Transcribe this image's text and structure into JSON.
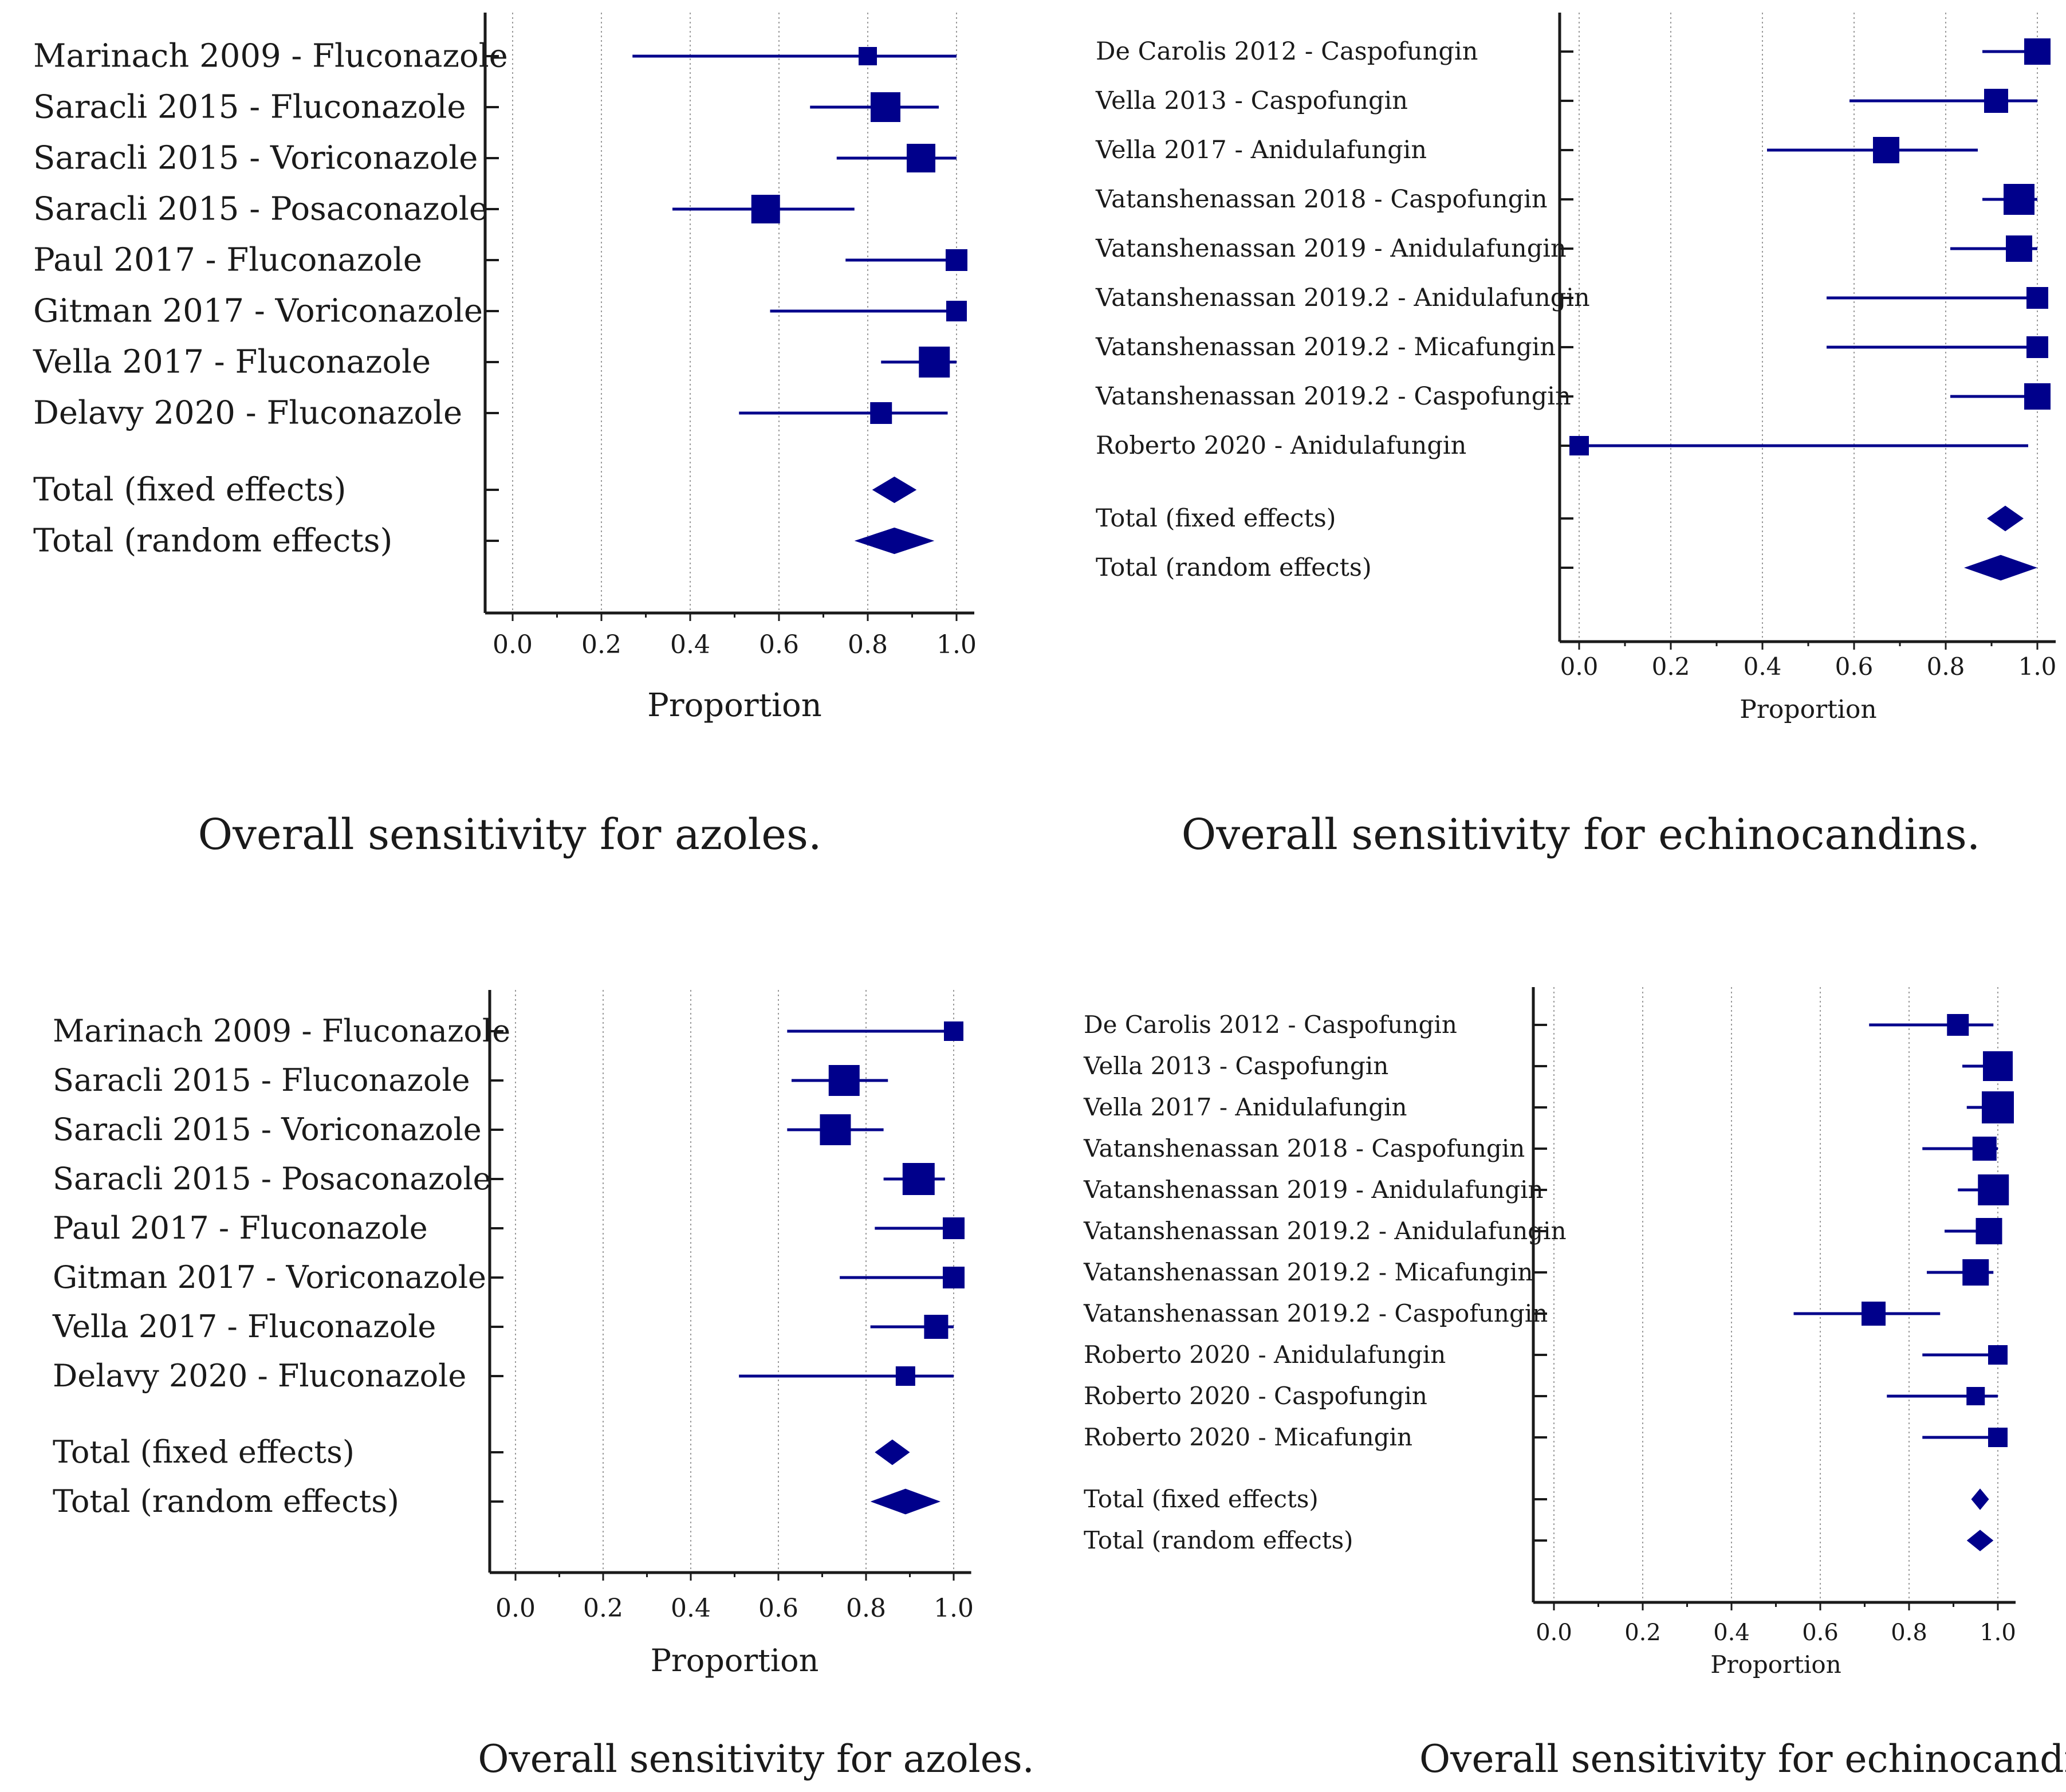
{
  "colors": {
    "marker": "#00008b",
    "axis": "#1a1a1a",
    "grid": "#9a9a9a",
    "text": "#1a1a1a"
  },
  "chart_data": [
    {
      "type": "forest",
      "title": "Overall sensitivity for azoles.",
      "xlabel": "Proportion",
      "xlim": [
        0,
        1
      ],
      "ticks": [
        "0.0",
        "0.2",
        "0.4",
        "0.6",
        "0.8",
        "1.0"
      ],
      "studies": [
        {
          "label": "Marinach 2009 - Fluconazole",
          "est": 0.8,
          "lo": 0.27,
          "hi": 1.0,
          "weight": 0.35
        },
        {
          "label": "Saracli 2015 - Fluconazole",
          "est": 0.84,
          "lo": 0.67,
          "hi": 0.96,
          "weight": 0.85
        },
        {
          "label": "Saracli 2015 - Voriconazole",
          "est": 0.92,
          "lo": 0.73,
          "hi": 1.0,
          "weight": 0.8
        },
        {
          "label": "Saracli 2015 - Posaconazole",
          "est": 0.57,
          "lo": 0.36,
          "hi": 0.77,
          "weight": 0.8
        },
        {
          "label": "Paul 2017 - Fluconazole",
          "est": 1.0,
          "lo": 0.75,
          "hi": 1.0,
          "weight": 0.5
        },
        {
          "label": "Gitman 2017 - Voriconazole",
          "est": 1.0,
          "lo": 0.58,
          "hi": 1.0,
          "weight": 0.45
        },
        {
          "label": "Vella 2017 - Fluconazole",
          "est": 0.95,
          "lo": 0.83,
          "hi": 1.0,
          "weight": 0.9
        },
        {
          "label": "Delavy 2020 - Fluconazole",
          "est": 0.83,
          "lo": 0.51,
          "hi": 0.98,
          "weight": 0.5
        }
      ],
      "totals": [
        {
          "label": "Total (fixed effects)",
          "est": 0.86,
          "lo": 0.81,
          "hi": 0.91
        },
        {
          "label": "Total (random effects)",
          "est": 0.86,
          "lo": 0.77,
          "hi": 0.95
        }
      ]
    },
    {
      "type": "forest",
      "title": "Overall sensitivity for echinocandins.",
      "xlabel": "Proportion",
      "xlim": [
        0,
        1
      ],
      "ticks": [
        "0.0",
        "0.2",
        "0.4",
        "0.6",
        "0.8",
        "1.0"
      ],
      "studies": [
        {
          "label": "De Carolis 2012 - Caspofungin",
          "est": 1.0,
          "lo": 0.88,
          "hi": 1.0,
          "weight": 0.7
        },
        {
          "label": "Vella 2013 - Caspofungin",
          "est": 0.91,
          "lo": 0.59,
          "hi": 1.0,
          "weight": 0.6
        },
        {
          "label": "Vella 2017 - Anidulafungin",
          "est": 0.67,
          "lo": 0.41,
          "hi": 0.87,
          "weight": 0.7
        },
        {
          "label": "Vatanshenassan 2018 - Caspofungin",
          "est": 0.96,
          "lo": 0.88,
          "hi": 1.0,
          "weight": 0.9
        },
        {
          "label": "Vatanshenassan 2019 - Anidulafungin",
          "est": 0.96,
          "lo": 0.81,
          "hi": 1.0,
          "weight": 0.7
        },
        {
          "label": "Vatanshenassan 2019.2 - Anidulafungin",
          "est": 1.0,
          "lo": 0.54,
          "hi": 1.0,
          "weight": 0.5
        },
        {
          "label": "Vatanshenassan 2019.2 - Micafungin",
          "est": 1.0,
          "lo": 0.54,
          "hi": 1.0,
          "weight": 0.5
        },
        {
          "label": "Vatanshenassan 2019.2 - Caspofungin",
          "est": 1.0,
          "lo": 0.81,
          "hi": 1.0,
          "weight": 0.7
        },
        {
          "label": "Roberto 2020 - Anidulafungin",
          "est": 0.0,
          "lo": 0.0,
          "hi": 0.98,
          "weight": 0.4
        }
      ],
      "totals": [
        {
          "label": "Total (fixed effects)",
          "est": 0.93,
          "lo": 0.89,
          "hi": 0.97
        },
        {
          "label": "Total (random effects)",
          "est": 0.92,
          "lo": 0.84,
          "hi": 1.0
        }
      ]
    },
    {
      "type": "forest",
      "title": "Overall sensitivity for azoles.",
      "xlabel": "Proportion",
      "xlim": [
        0,
        1
      ],
      "ticks": [
        "0.0",
        "0.2",
        "0.4",
        "0.6",
        "0.8",
        "1.0"
      ],
      "studies": [
        {
          "label": "Marinach 2009 - Fluconazole",
          "est": 1.0,
          "lo": 0.62,
          "hi": 1.0,
          "weight": 0.4
        },
        {
          "label": "Saracli 2015 - Fluconazole",
          "est": 0.75,
          "lo": 0.63,
          "hi": 0.85,
          "weight": 0.9
        },
        {
          "label": "Saracli 2015 - Voriconazole",
          "est": 0.73,
          "lo": 0.62,
          "hi": 0.84,
          "weight": 0.9
        },
        {
          "label": "Saracli 2015 - Posaconazole",
          "est": 0.92,
          "lo": 0.84,
          "hi": 0.98,
          "weight": 0.95
        },
        {
          "label": "Paul 2017 - Fluconazole",
          "est": 1.0,
          "lo": 0.82,
          "hi": 1.0,
          "weight": 0.5
        },
        {
          "label": "Gitman 2017 - Voriconazole",
          "est": 1.0,
          "lo": 0.74,
          "hi": 1.0,
          "weight": 0.5
        },
        {
          "label": "Vella 2017 - Fluconazole",
          "est": 0.96,
          "lo": 0.81,
          "hi": 1.0,
          "weight": 0.6
        },
        {
          "label": "Delavy 2020 - Fluconazole",
          "est": 0.89,
          "lo": 0.51,
          "hi": 1.0,
          "weight": 0.4
        }
      ],
      "totals": [
        {
          "label": "Total (fixed effects)",
          "est": 0.86,
          "lo": 0.82,
          "hi": 0.9
        },
        {
          "label": "Total (random effects)",
          "est": 0.89,
          "lo": 0.81,
          "hi": 0.97
        }
      ]
    },
    {
      "type": "forest",
      "title": "Overall sensitivity for echinocandins.",
      "xlabel": "Proportion",
      "xlim": [
        0,
        1
      ],
      "ticks": [
        "0.0",
        "0.2",
        "0.4",
        "0.6",
        "0.8",
        "1.0"
      ],
      "studies": [
        {
          "label": "De Carolis 2012 - Caspofungin",
          "est": 0.91,
          "lo": 0.71,
          "hi": 0.99,
          "weight": 0.5
        },
        {
          "label": "Vella 2013 - Caspofungin",
          "est": 1.0,
          "lo": 0.92,
          "hi": 1.0,
          "weight": 0.85
        },
        {
          "label": "Vella 2017 - Anidulafungin",
          "est": 1.0,
          "lo": 0.93,
          "hi": 1.0,
          "weight": 0.95
        },
        {
          "label": "Vatanshenassan 2018 - Caspofungin",
          "est": 0.97,
          "lo": 0.83,
          "hi": 1.0,
          "weight": 0.6
        },
        {
          "label": "Vatanshenassan 2019 - Anidulafungin",
          "est": 0.99,
          "lo": 0.91,
          "hi": 1.0,
          "weight": 0.9
        },
        {
          "label": "Vatanshenassan 2019.2 - Anidulafungin",
          "est": 0.98,
          "lo": 0.88,
          "hi": 1.0,
          "weight": 0.7
        },
        {
          "label": "Vatanshenassan 2019.2 - Micafungin",
          "est": 0.95,
          "lo": 0.84,
          "hi": 0.99,
          "weight": 0.7
        },
        {
          "label": "Vatanshenassan 2019.2 - Caspofungin",
          "est": 0.72,
          "lo": 0.54,
          "hi": 0.87,
          "weight": 0.6
        },
        {
          "label": "Roberto 2020 - Anidulafungin",
          "est": 1.0,
          "lo": 0.83,
          "hi": 1.0,
          "weight": 0.4
        },
        {
          "label": "Roberto 2020 - Caspofungin",
          "est": 0.95,
          "lo": 0.75,
          "hi": 1.0,
          "weight": 0.35
        },
        {
          "label": "Roberto 2020 - Micafungin",
          "est": 1.0,
          "lo": 0.83,
          "hi": 1.0,
          "weight": 0.4
        }
      ],
      "totals": [
        {
          "label": "Total (fixed effects)",
          "est": 0.96,
          "lo": 0.94,
          "hi": 0.98
        },
        {
          "label": "Total (random effects)",
          "est": 0.96,
          "lo": 0.93,
          "hi": 0.99
        }
      ]
    }
  ]
}
